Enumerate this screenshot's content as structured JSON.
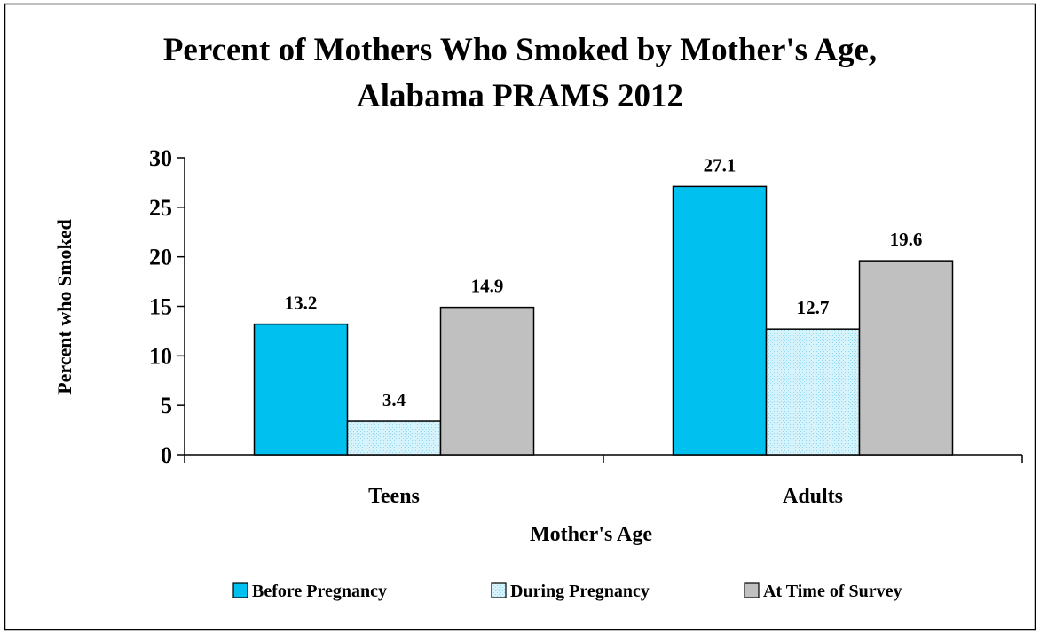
{
  "chart_data": {
    "type": "bar",
    "title_lines": [
      "Percent of Mothers Who Smoked by Mother's Age,",
      "Alabama PRAMS 2012"
    ],
    "xlabel": "Mother's Age",
    "ylabel": "Percent who Smoked",
    "categories": [
      "Teens",
      "Adults"
    ],
    "ylim": [
      0,
      30
    ],
    "yticks": [
      0,
      5,
      10,
      15,
      20,
      25,
      30
    ],
    "grid": false,
    "legend_position": "bottom",
    "series": [
      {
        "name": "Before Pregnancy",
        "values": [
          13.2,
          27.1
        ],
        "color": "#00c0ef",
        "pattern": "solid"
      },
      {
        "name": "During Pregnancy",
        "values": [
          3.4,
          12.7
        ],
        "color": "#c9eefb",
        "pattern": "dotted"
      },
      {
        "name": "At Time of Survey",
        "values": [
          14.9,
          19.6
        ],
        "color": "#c0c0c0",
        "pattern": "solid"
      }
    ]
  }
}
